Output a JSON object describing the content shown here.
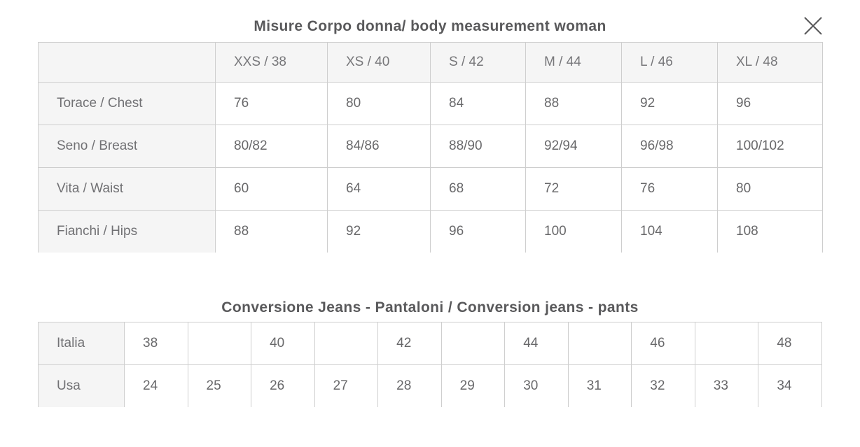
{
  "modal": {
    "name": "size-guide-modal"
  },
  "measurement_table": {
    "title": "Misure Corpo donna/ body measurement woman",
    "size_headers": [
      "XXS / 38",
      "XS / 40",
      "S / 42",
      "M / 44",
      "L / 46",
      "XL / 48"
    ],
    "rows": [
      {
        "label": "Torace / Chest",
        "values": [
          "76",
          "80",
          "84",
          "88",
          "92",
          "96"
        ]
      },
      {
        "label": "Seno / Breast",
        "values": [
          "80/82",
          "84/86",
          "88/90",
          "92/94",
          "96/98",
          "100/102"
        ]
      },
      {
        "label": "Vita / Waist",
        "values": [
          "60",
          "64",
          "68",
          "72",
          "76",
          "80"
        ]
      },
      {
        "label": "Fianchi / Hips",
        "values": [
          "88",
          "92",
          "96",
          "100",
          "104",
          "108"
        ]
      }
    ]
  },
  "conversion_table": {
    "title": "Conversione Jeans - Pantaloni / Conversion jeans - pants",
    "rows": [
      {
        "label": "Italia",
        "values": [
          "38",
          "",
          "40",
          "",
          "42",
          "",
          "44",
          "",
          "46",
          "",
          "48"
        ]
      },
      {
        "label": "Usa",
        "values": [
          "24",
          "25",
          "26",
          "27",
          "28",
          "29",
          "30",
          "31",
          "32",
          "33",
          "34"
        ]
      }
    ]
  },
  "colors": {
    "header_bg": "#f5f5f5",
    "border_inner": "#cecece",
    "border_outer": "#c2c2c2",
    "cell_text": "#68686a",
    "title_text": "#59595b",
    "close_icon": "#565658"
  }
}
